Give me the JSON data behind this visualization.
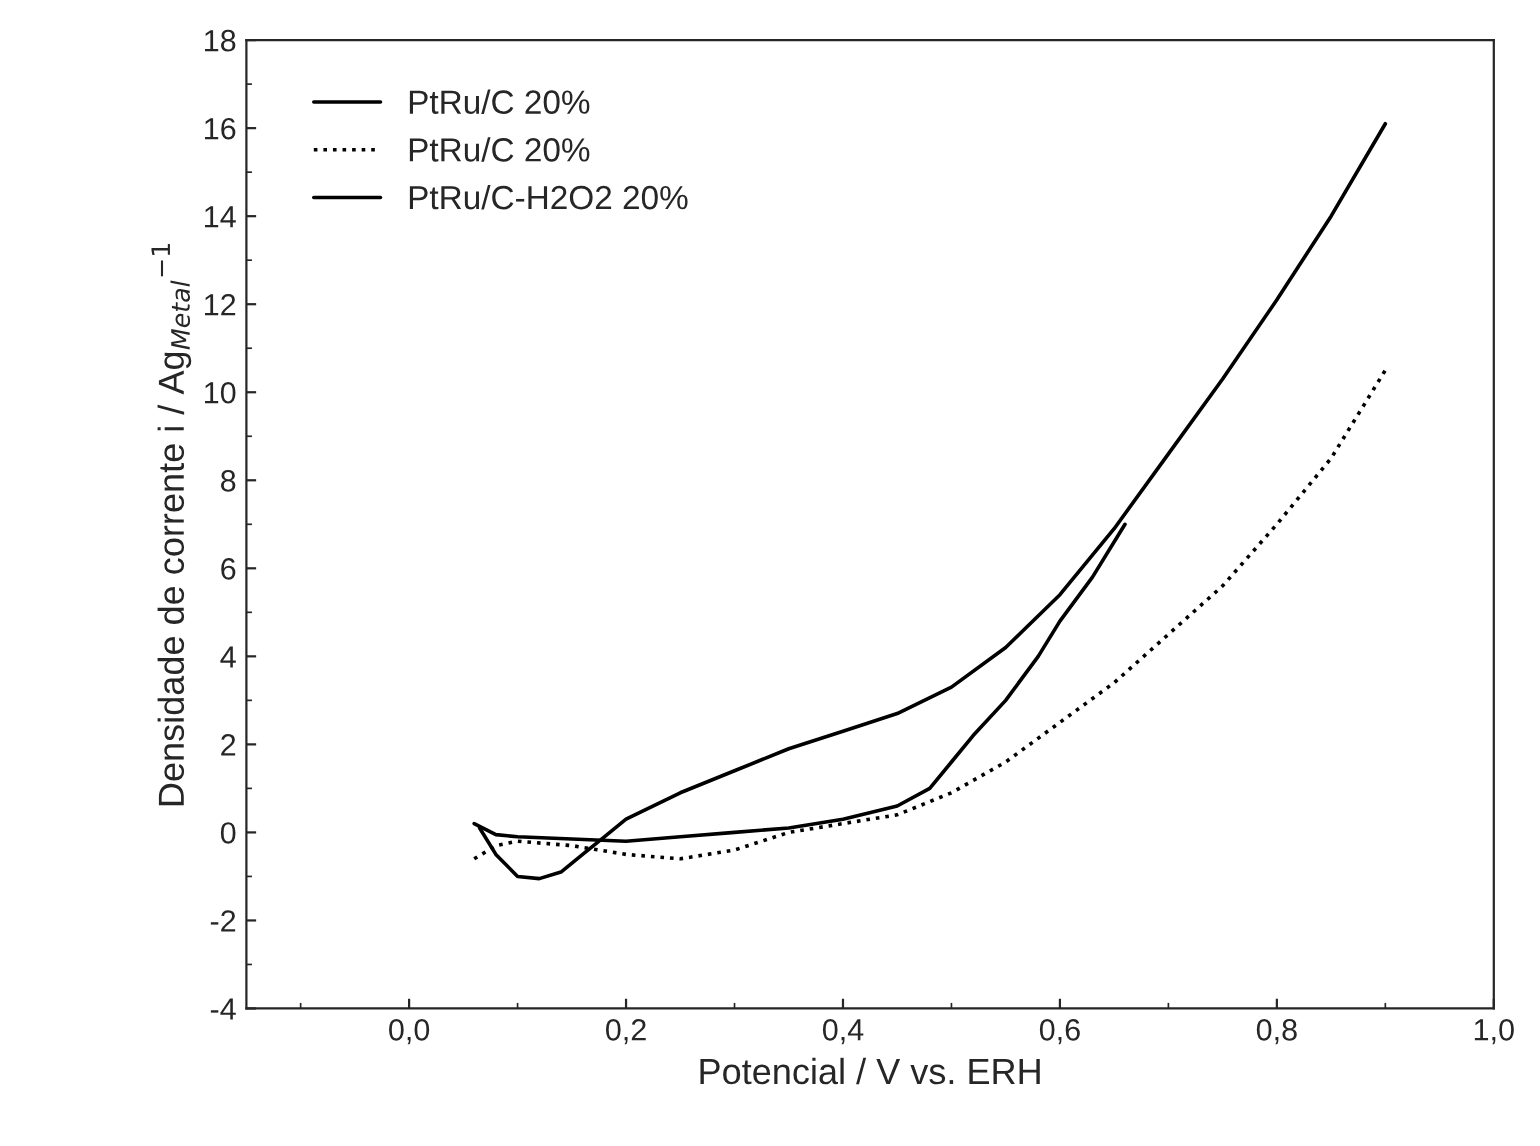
{
  "chart_data": {
    "type": "line",
    "xlabel": "Potencial / V vs. ERH",
    "ylabel": "Densidade de corrente i / Ag$_{Metal}$$^{−1}$",
    "xlim": [
      -0.15,
      1.0
    ],
    "xticks": [
      {
        "value": 0.0,
        "label": "0,0"
      },
      {
        "value": 0.2,
        "label": "0,2"
      },
      {
        "value": 0.4,
        "label": "0,4"
      },
      {
        "value": 0.6,
        "label": "0,6"
      },
      {
        "value": 0.8,
        "label": "0,8"
      },
      {
        "value": 1.0,
        "label": "1,0"
      }
    ],
    "ylim": [
      -4,
      18
    ],
    "yticks": [
      -4,
      -2,
      0,
      2,
      4,
      6,
      8,
      10,
      12,
      14,
      16,
      18
    ],
    "legend": "top left",
    "grid": false,
    "series": [
      {
        "name": "PtRu/C 20%",
        "color": "#000000",
        "line_style": "solid",
        "x": [
          0.06,
          0.08,
          0.1,
          0.15,
          0.2,
          0.25,
          0.3,
          0.35,
          0.4,
          0.45,
          0.48,
          0.5,
          0.52,
          0.55,
          0.58,
          0.6,
          0.63,
          0.66
        ],
        "values": [
          0.2,
          -0.05,
          -0.1,
          -0.15,
          -0.2,
          -0.1,
          0.0,
          0.1,
          0.3,
          0.6,
          1.0,
          1.6,
          2.2,
          3.0,
          4.0,
          4.8,
          5.8,
          7.0
        ]
      },
      {
        "name": "PtRu/C 20%",
        "color": "#000000",
        "line_style": "dotted",
        "x": [
          0.06,
          0.08,
          0.1,
          0.15,
          0.2,
          0.25,
          0.3,
          0.35,
          0.4,
          0.45,
          0.5,
          0.55,
          0.6,
          0.65,
          0.7,
          0.75,
          0.8,
          0.85,
          0.9
        ],
        "values": [
          -0.6,
          -0.3,
          -0.2,
          -0.3,
          -0.5,
          -0.6,
          -0.4,
          0.0,
          0.2,
          0.4,
          0.9,
          1.6,
          2.5,
          3.4,
          4.5,
          5.6,
          7.0,
          8.5,
          10.5
        ]
      },
      {
        "name": "PtRu/C-H2O2 20%",
        "color": "#000000",
        "line_style": "solid",
        "x": [
          0.065,
          0.08,
          0.1,
          0.12,
          0.14,
          0.16,
          0.18,
          0.2,
          0.25,
          0.3,
          0.35,
          0.4,
          0.45,
          0.5,
          0.55,
          0.6,
          0.65,
          0.7,
          0.75,
          0.8,
          0.85,
          0.9
        ],
        "values": [
          0.1,
          -0.5,
          -1.0,
          -1.05,
          -0.9,
          -0.5,
          -0.1,
          0.3,
          0.9,
          1.4,
          1.9,
          2.3,
          2.7,
          3.3,
          4.2,
          5.4,
          6.9,
          8.6,
          10.3,
          12.1,
          14.0,
          16.1
        ]
      }
    ]
  }
}
